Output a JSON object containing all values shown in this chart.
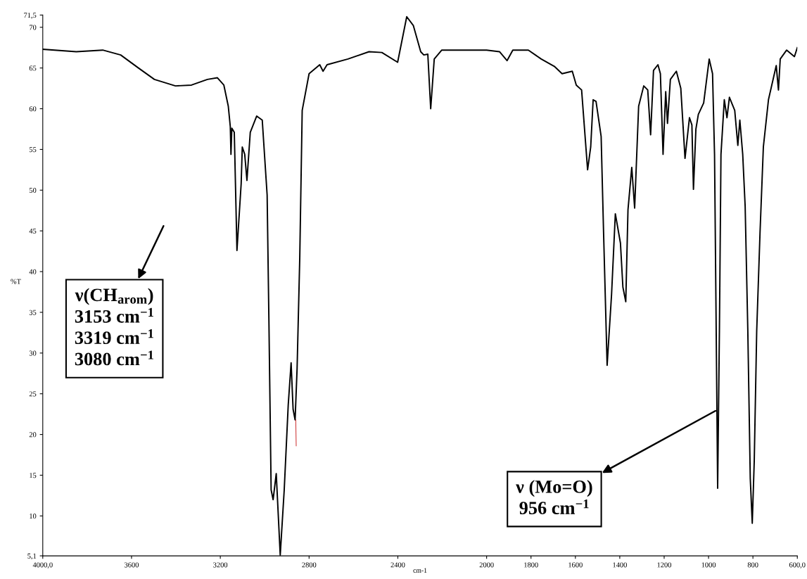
{
  "chart_data": {
    "type": "line",
    "xlabel": "cm-1",
    "ylabel": "%T",
    "xlim": [
      4000,
      600
    ],
    "ylim": [
      5.1,
      71.5
    ],
    "xticks": [
      {
        "value": 4000,
        "label": "4000,0"
      },
      3600,
      3200,
      2800,
      2400,
      2000,
      1800,
      1600,
      1400,
      1200,
      1000,
      800,
      {
        "value": 600,
        "label": "600,0"
      }
    ],
    "yticks": [
      {
        "value": 5.1,
        "label": "5,1"
      },
      10,
      15,
      20,
      25,
      30,
      35,
      40,
      45,
      50,
      55,
      60,
      65,
      70,
      {
        "value": 71.5,
        "label": "71,5"
      }
    ],
    "grid": false,
    "legend": false,
    "marker": "none",
    "line_style": "solid",
    "series": [
      {
        "color": "#000000",
        "x": [
          4000,
          3849,
          3730,
          3649,
          3569,
          3497,
          3402,
          3330,
          3258,
          3213,
          3184,
          3164,
          3155,
          3152,
          3148,
          3137,
          3125,
          3106,
          3101,
          3090,
          3080,
          3065,
          3036,
          3011,
          2989,
          2981,
          2971,
          2962,
          2948,
          2930,
          2912,
          2894,
          2881,
          2872,
          2863,
          2854,
          2842,
          2831,
          2800,
          2752,
          2737,
          2719,
          2625,
          2530,
          2472,
          2401,
          2360,
          2330,
          2297,
          2283,
          2265,
          2252,
          2236,
          2202,
          2000,
          1942,
          1908,
          1882,
          1812,
          1754,
          1695,
          1660,
          1614,
          1596,
          1572,
          1545,
          1531,
          1520,
          1507,
          1484,
          1473,
          1457,
          1437,
          1420,
          1397,
          1386,
          1373,
          1363,
          1346,
          1333,
          1315,
          1292,
          1274,
          1261,
          1248,
          1228,
          1217,
          1205,
          1193,
          1185,
          1172,
          1145,
          1125,
          1106,
          1086,
          1075,
          1068,
          1057,
          1046,
          1022,
          997,
          982,
          973,
          967,
          959,
          951,
          944,
          929,
          917,
          906,
          882,
          868,
          859,
          846,
          835,
          823,
          812,
          803,
          794,
          783,
          768,
          753,
          730,
          695,
          685,
          677,
          648,
          613,
          600
        ],
        "values": [
          67.3,
          67.0,
          67.2,
          66.6,
          65.0,
          63.6,
          62.8,
          62.9,
          63.6,
          63.8,
          62.9,
          60.3,
          57.8,
          54.4,
          57.6,
          57.1,
          42.6,
          50.8,
          55.3,
          54.4,
          51.2,
          57.1,
          59.1,
          58.6,
          49.4,
          34.0,
          13.2,
          12.0,
          15.2,
          5.2,
          13.2,
          23.6,
          28.8,
          23.1,
          21.8,
          28.1,
          41.7,
          59.8,
          64.3,
          65.4,
          64.6,
          65.4,
          66.1,
          67.0,
          66.9,
          65.7,
          71.3,
          70.2,
          67.0,
          66.6,
          66.7,
          60.0,
          66.1,
          67.2,
          67.2,
          67.0,
          65.9,
          67.2,
          67.2,
          66.1,
          65.2,
          64.3,
          64.6,
          62.9,
          62.3,
          52.5,
          55.3,
          61.1,
          60.9,
          56.6,
          44.8,
          28.5,
          37.2,
          47.1,
          43.5,
          38.1,
          36.3,
          47.6,
          52.8,
          47.8,
          60.3,
          62.8,
          62.3,
          56.8,
          64.7,
          65.4,
          64.3,
          54.4,
          62.1,
          58.2,
          63.6,
          64.6,
          62.5,
          53.9,
          58.9,
          58.0,
          50.1,
          57.5,
          59.3,
          60.7,
          66.1,
          64.3,
          54.4,
          37.2,
          13.4,
          32.7,
          54.4,
          61.1,
          58.9,
          61.4,
          59.8,
          55.5,
          58.6,
          54.4,
          48.0,
          32.7,
          14.6,
          9.1,
          16.8,
          32.7,
          44.8,
          55.3,
          61.1,
          65.3,
          62.3,
          66.1,
          67.2,
          66.4,
          67.5
        ]
      },
      {
        "color": "#c00000",
        "x": [
          2860,
          2858
        ],
        "values": [
          21.8,
          18.6
        ]
      }
    ],
    "annotations": [
      "ν(CH$_{arom}$)\n3153 cm$^{−1}$\n3319 cm$^{−1}$\n3080 cm$^{−1}$",
      {
        "text": "ν (Mo=O)\n956 cm$^{−1}$",
        "x": 969,
        "y": 22.9
      }
    ]
  }
}
